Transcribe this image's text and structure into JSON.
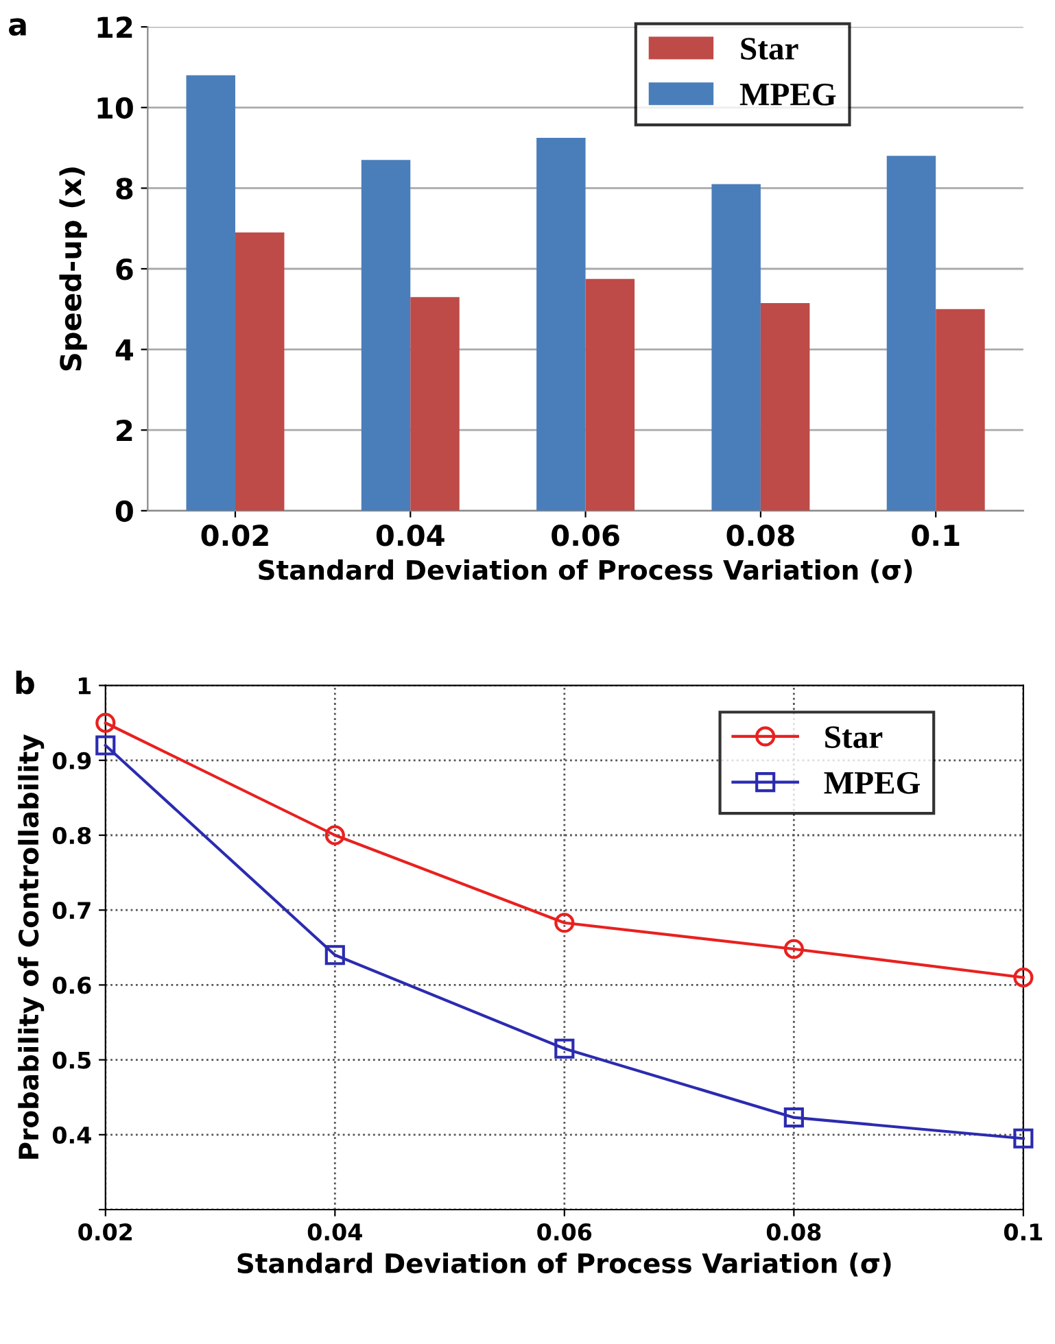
{
  "chart_data": [
    {
      "type": "bar",
      "annotations": [
        "a"
      ],
      "xlabel": "Standard Deviation of Process Variation (σ)",
      "ylabel": "Speed-up (x)",
      "categories": [
        "0.02",
        "0.04",
        "0.06",
        "0.08",
        "0.1"
      ],
      "series": [
        {
          "name": "MPEG",
          "color": "#4a7ebb",
          "values": [
            10.8,
            8.7,
            9.25,
            8.1,
            8.8
          ]
        },
        {
          "name": "Star",
          "color": "#be4b48",
          "values": [
            6.9,
            5.3,
            5.75,
            5.15,
            5.0
          ]
        }
      ],
      "ylim": [
        0,
        12
      ],
      "yticks": [
        0,
        2,
        4,
        6,
        8,
        10,
        12
      ],
      "grid": "y",
      "legend": "top right"
    },
    {
      "type": "line",
      "annotations": [
        "b"
      ],
      "xlabel": "Standard Deviation of Process Variation (σ)",
      "ylabel": "Probability of Controllability",
      "x": [
        0.02,
        0.04,
        0.06,
        0.08,
        0.1
      ],
      "series": [
        {
          "name": "Star",
          "color": "#e8211f",
          "marker": "circle",
          "values": [
            0.95,
            0.8,
            0.683,
            0.648,
            0.61
          ]
        },
        {
          "name": "MPEG",
          "color": "#2b2bb0",
          "marker": "square",
          "values": [
            0.92,
            0.64,
            0.515,
            0.423,
            0.395
          ]
        }
      ],
      "xlim": [
        0.02,
        0.1
      ],
      "xticks": [
        0.02,
        0.04,
        0.06,
        0.08,
        0.1
      ],
      "ylim": [
        0.3,
        1
      ],
      "yticks": [
        {
          "value": 0.3,
          "label": null
        },
        0.4,
        0.5,
        0.6,
        0.7,
        0.8,
        0.9,
        1
      ],
      "grid": true,
      "legend": "top right"
    }
  ]
}
